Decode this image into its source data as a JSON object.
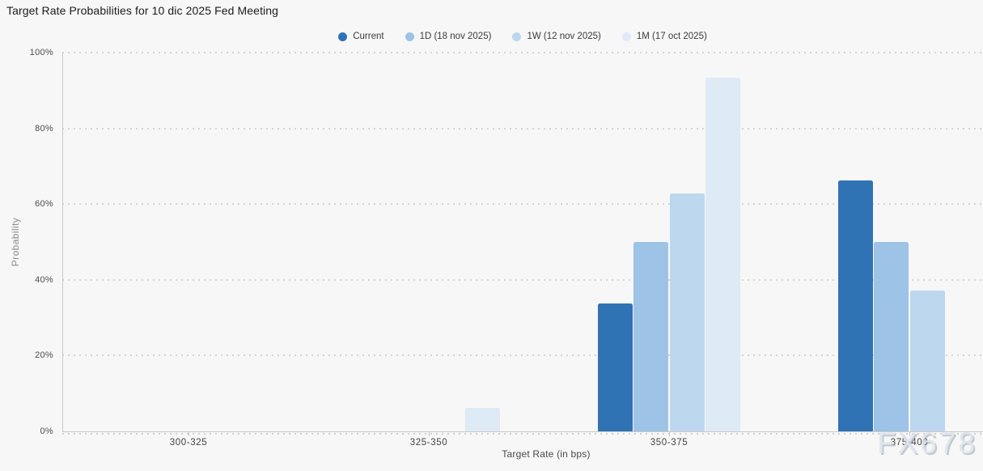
{
  "watermark": "FX678",
  "chart_data": {
    "type": "bar",
    "title": "Target Rate Probabilities for 10 dic 2025 Fed Meeting",
    "xlabel": "Target Rate (in bps)",
    "ylabel": "Probability",
    "categories": [
      "300-325",
      "325-350",
      "350-375",
      "375-400"
    ],
    "series": [
      {
        "name": "Current",
        "key": "current",
        "color": "#2f73b4",
        "values": [
          0,
          0,
          33.7,
          66.3
        ]
      },
      {
        "name": "1D (18 nov 2025)",
        "key": "1d",
        "color": "#9dc3e6",
        "values": [
          0,
          0,
          50.1,
          49.9
        ]
      },
      {
        "name": "1W (12 nov 2025)",
        "key": "1w",
        "color": "#bdd7ee",
        "values": [
          0,
          0,
          62.8,
          37.1
        ]
      },
      {
        "name": "1M (17 oct 2025)",
        "key": "1m",
        "color": "#deeaf6",
        "values": [
          0,
          6.3,
          93.4,
          0
        ]
      }
    ],
    "ylim": [
      0,
      100
    ],
    "ytick_values": [
      0,
      20,
      40,
      60,
      80,
      100
    ],
    "ytick_labels": [
      "0%",
      "20%",
      "40%",
      "60%",
      "80%",
      "100%"
    ],
    "grid": "horizontal-dotted",
    "legend_position": "top-center",
    "background_color": "#f7f7f7"
  }
}
